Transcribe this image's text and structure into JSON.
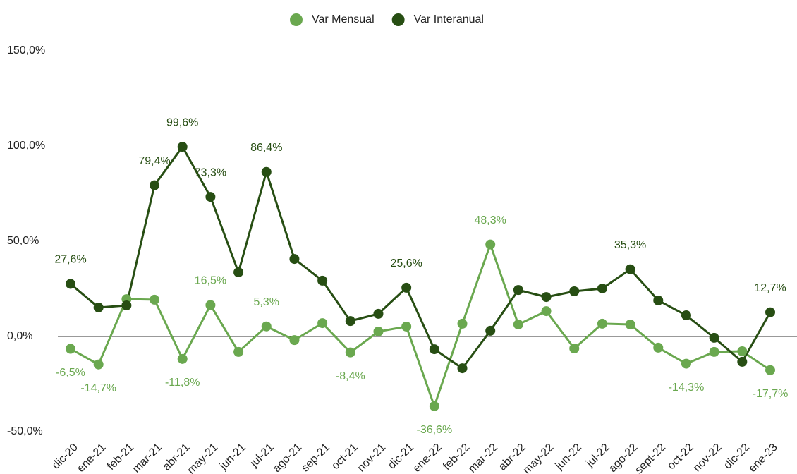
{
  "chart_data": {
    "type": "line",
    "categories": [
      "dic-20",
      "ene-21",
      "feb-21",
      "mar-21",
      "abr-21",
      "may-21",
      "jun-21",
      "jul-21",
      "ago-21",
      "sep-21",
      "oct-21",
      "nov-21",
      "dic-21",
      "ene-22",
      "feb-22",
      "mar-22",
      "abr-22",
      "may-22",
      "jun-22",
      "jul-22",
      "ago-22",
      "sept-22",
      "oct-22",
      "nov-22",
      "dic-22",
      "ene-23"
    ],
    "series": [
      {
        "name": "Var Mensual",
        "color": "#6aa84f",
        "values": [
          -6.5,
          -14.7,
          19.6,
          19.3,
          -11.8,
          16.5,
          -8.1,
          5.3,
          -1.9,
          7.0,
          -8.4,
          2.6,
          5.2,
          -36.6,
          6.7,
          48.3,
          6.3,
          13.3,
          -6.3,
          6.7,
          6.3,
          -5.9,
          -14.3,
          -8.1,
          -7.8,
          -17.7
        ],
        "value_labels": [
          "-6,5%",
          "-14,7%",
          null,
          null,
          "-11,8%",
          "16,5%",
          null,
          "5,3%",
          null,
          null,
          "-8,4%",
          null,
          null,
          "-36,6%",
          null,
          "48,3%",
          null,
          null,
          null,
          null,
          null,
          null,
          "-14,3%",
          null,
          null,
          "-17,7%"
        ]
      },
      {
        "name": "Var Interanual",
        "color": "#274e13",
        "values": [
          27.6,
          15.2,
          16.3,
          79.4,
          99.6,
          73.3,
          33.7,
          86.4,
          40.7,
          29.3,
          8.1,
          11.9,
          25.6,
          -6.7,
          -16.7,
          3.0,
          24.4,
          20.7,
          23.7,
          25.2,
          35.3,
          18.9,
          11.1,
          -0.7,
          -13.3,
          12.7
        ],
        "value_labels": [
          "27,6%",
          null,
          null,
          "79,4%",
          "99,6%",
          "73,3%",
          null,
          "86,4%",
          null,
          null,
          null,
          null,
          "25,6%",
          null,
          null,
          null,
          null,
          null,
          null,
          null,
          "35,3%",
          null,
          null,
          null,
          null,
          "12,7%"
        ]
      }
    ],
    "ylim": [
      -50,
      150
    ],
    "yticks": [
      {
        "value": -50,
        "label": "-50,0%"
      },
      {
        "value": 0,
        "label": "0,0%"
      },
      {
        "value": 50,
        "label": "50,0%"
      },
      {
        "value": 100,
        "label": "100,0%"
      },
      {
        "value": 150,
        "label": "150,0%"
      }
    ],
    "grid": false,
    "legend": "top"
  }
}
